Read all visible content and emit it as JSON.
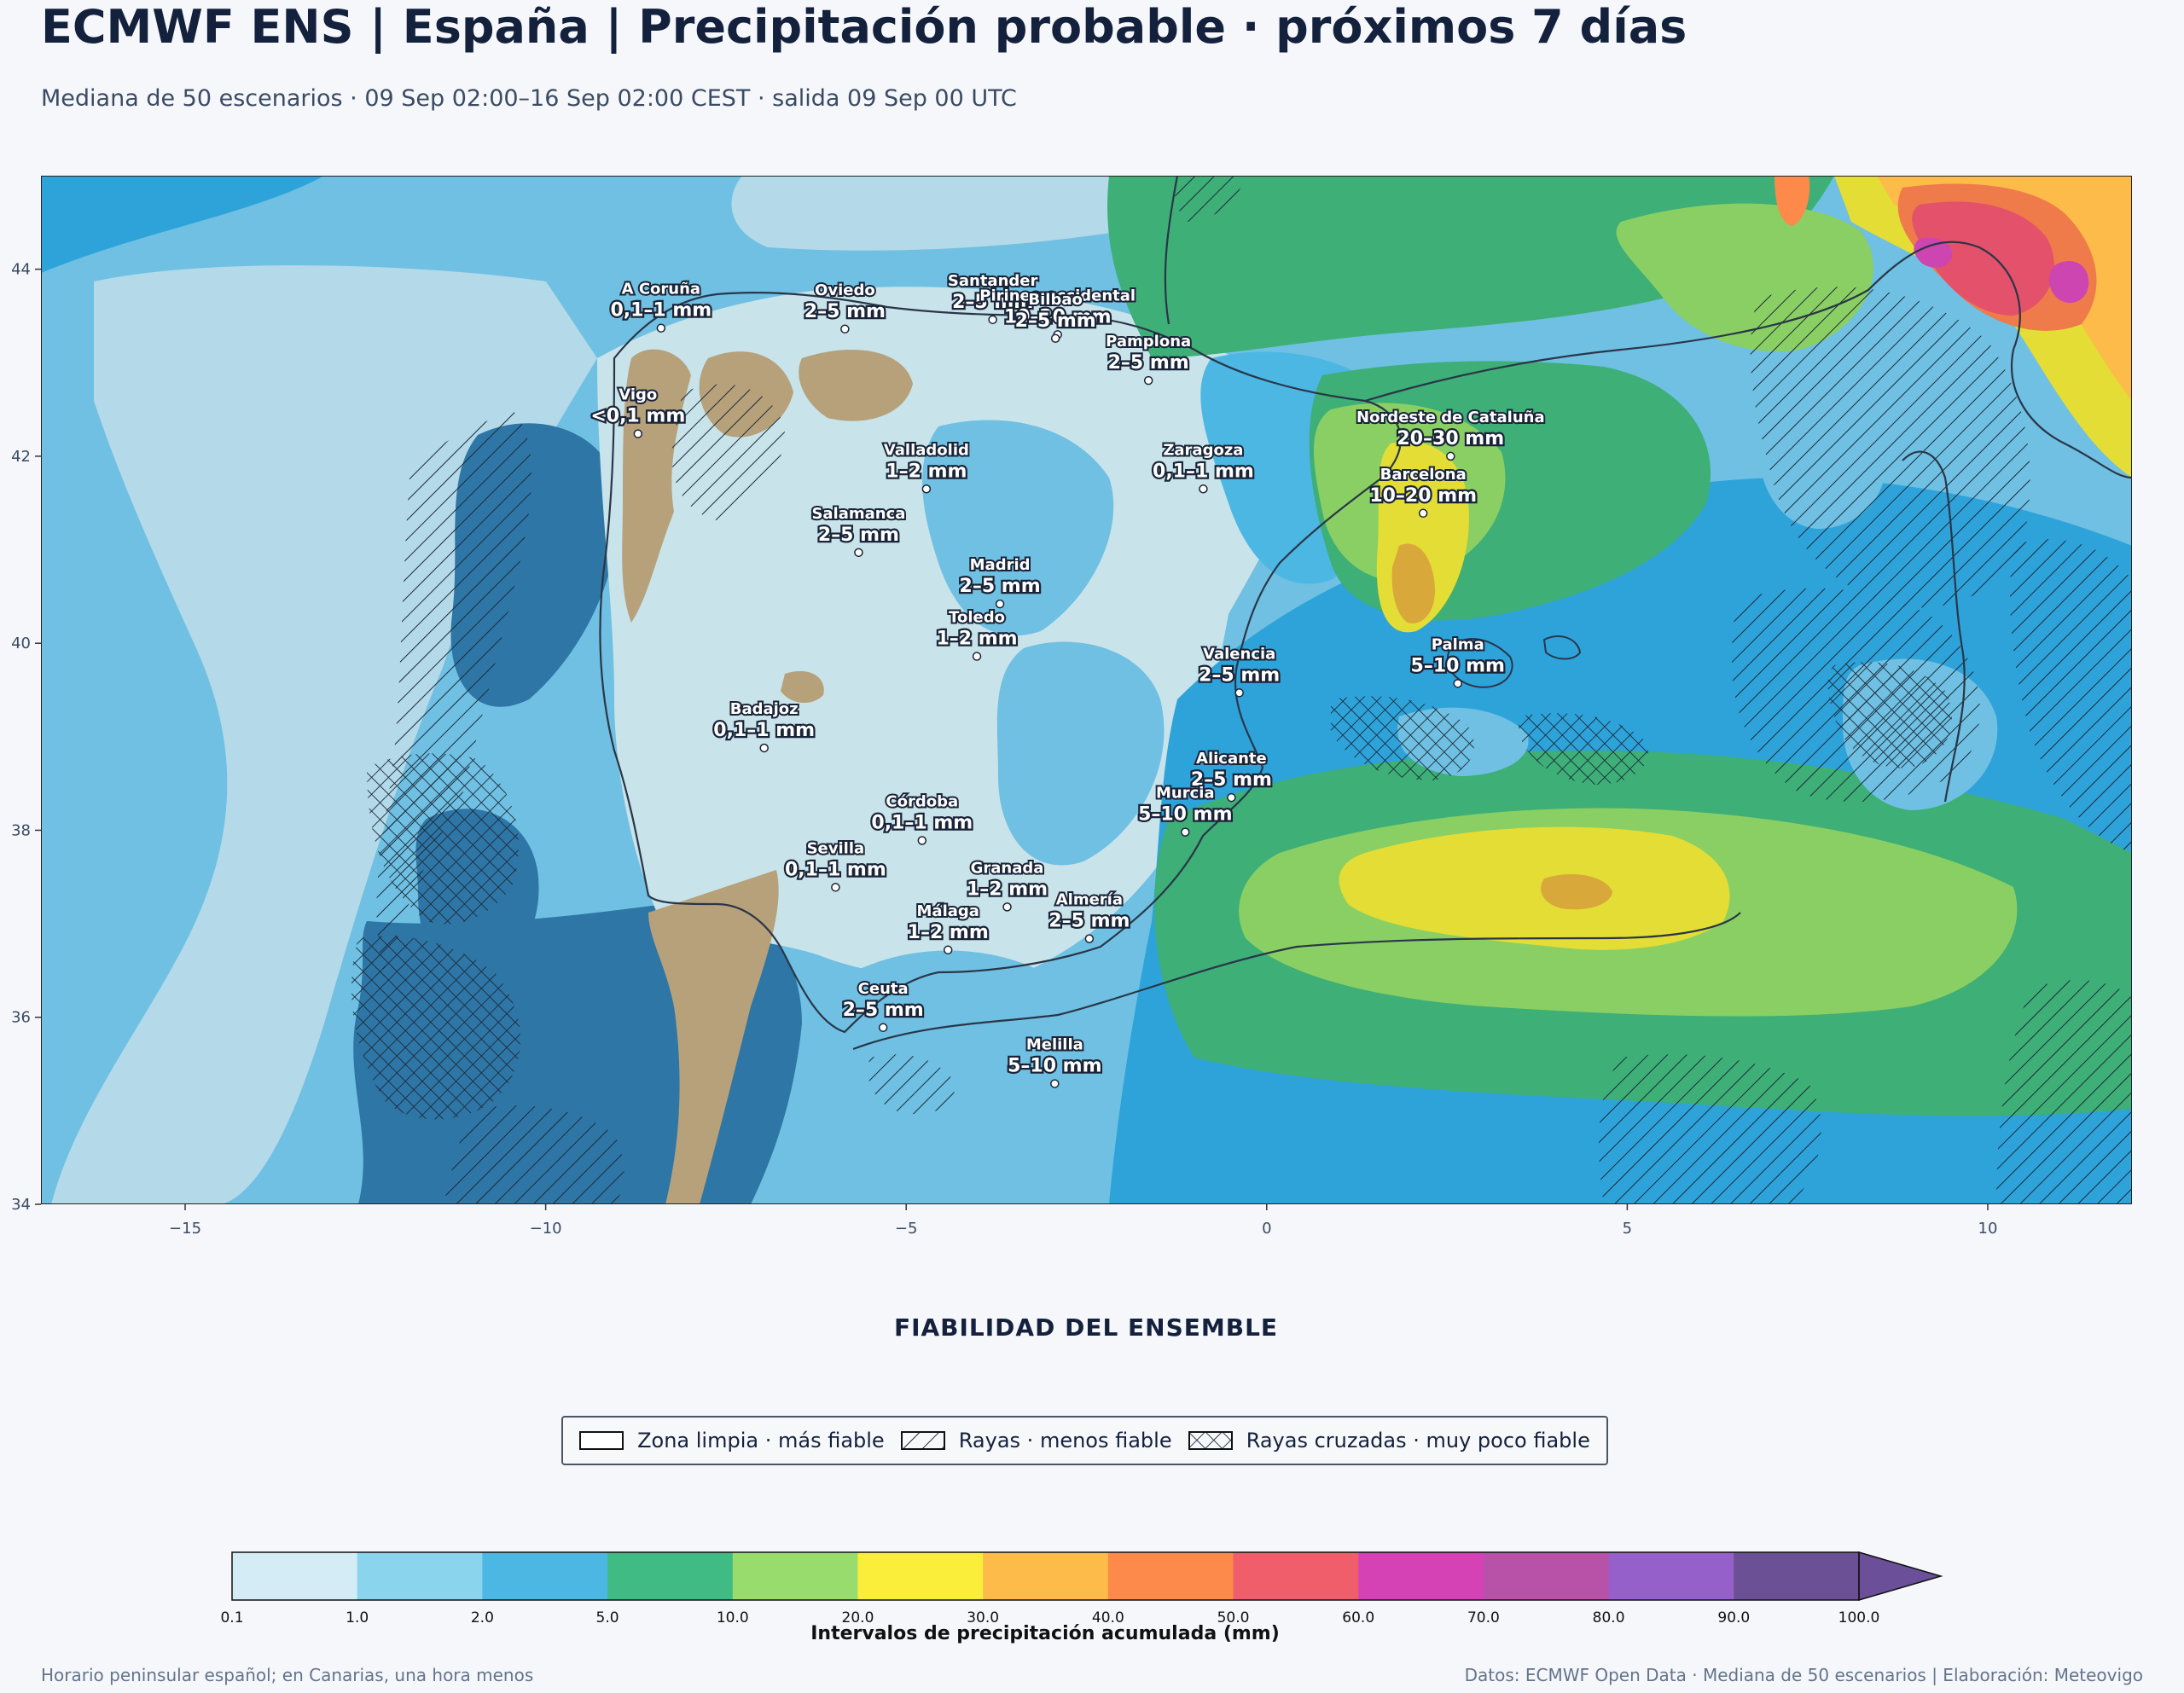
{
  "header": {
    "title": "ECMWF ENS | España | Precipitación probable · próximos 7 días",
    "subtitle": "Mediana de 50 escenarios · 09 Sep 02:00–16 Sep 02:00 CEST · salida 09 Sep 00 UTC"
  },
  "map": {
    "lon_ticks": [
      "−15",
      "−10",
      "−5",
      "0",
      "5",
      "10"
    ],
    "lat_ticks": [
      "44",
      "42",
      "40",
      "38",
      "36",
      "34"
    ],
    "lon_range": [
      -17,
      12
    ],
    "lat_range": [
      34,
      45
    ],
    "cities": [
      {
        "name": "A Coruña",
        "value": "0,1–1 mm",
        "lon": -8.4,
        "lat": 43.37
      },
      {
        "name": "Oviedo",
        "value": "2–5 mm",
        "lon": -5.85,
        "lat": 43.36
      },
      {
        "name": "Santander",
        "value": "2–5 mm",
        "lon": -3.8,
        "lat": 43.46
      },
      {
        "name": "Pirineo occidental",
        "value": "10–20 mm",
        "lon": -2.9,
        "lat": 43.3
      },
      {
        "name": "Pamplona",
        "value": "2–5 mm",
        "lon": -1.64,
        "lat": 42.81
      },
      {
        "name": "Bilbao",
        "value": "2–5 mm",
        "lon": -2.93,
        "lat": 43.26
      },
      {
        "name": "Nordeste de Cataluña",
        "value": "20–30 mm",
        "lon": 2.55,
        "lat": 42.0
      },
      {
        "name": "Vigo",
        "value": "<0,1 mm",
        "lon": -8.72,
        "lat": 42.24
      },
      {
        "name": "Valladolid",
        "value": "1–2 mm",
        "lon": -4.72,
        "lat": 41.65
      },
      {
        "name": "Zaragoza",
        "value": "0,1–1 mm",
        "lon": -0.88,
        "lat": 41.65
      },
      {
        "name": "Barcelona",
        "value": "10–20 mm",
        "lon": 2.17,
        "lat": 41.39
      },
      {
        "name": "Salamanca",
        "value": "2–5 mm",
        "lon": -5.66,
        "lat": 40.97
      },
      {
        "name": "Madrid",
        "value": "2–5 mm",
        "lon": -3.7,
        "lat": 40.42
      },
      {
        "name": "Valencia",
        "value": "2–5 mm",
        "lon": -0.38,
        "lat": 39.47
      },
      {
        "name": "Toledo",
        "value": "1–2 mm",
        "lon": -4.02,
        "lat": 39.86
      },
      {
        "name": "Badajoz",
        "value": "0,1–1 mm",
        "lon": -6.97,
        "lat": 38.88
      },
      {
        "name": "Palma",
        "value": "5–10 mm",
        "lon": 2.65,
        "lat": 39.57
      },
      {
        "name": "Córdoba",
        "value": "0,1–1 mm",
        "lon": -4.78,
        "lat": 37.89
      },
      {
        "name": "Alicante",
        "value": "2–5 mm",
        "lon": -0.49,
        "lat": 38.35
      },
      {
        "name": "Granada",
        "value": "1–2 mm",
        "lon": -3.6,
        "lat": 37.18
      },
      {
        "name": "Murcia",
        "value": "5–10 mm",
        "lon": -1.13,
        "lat": 37.98
      },
      {
        "name": "Sevilla",
        "value": "0,1–1 mm",
        "lon": -5.98,
        "lat": 37.39
      },
      {
        "name": "Almería",
        "value": "2–5 mm",
        "lon": -2.46,
        "lat": 36.84
      },
      {
        "name": "Málaga",
        "value": "1–2 mm",
        "lon": -4.42,
        "lat": 36.72
      },
      {
        "name": "Ceuta",
        "value": "2–5 mm",
        "lon": -5.32,
        "lat": 35.89
      },
      {
        "name": "Melilla",
        "value": "5–10 mm",
        "lon": -2.94,
        "lat": 35.29
      }
    ]
  },
  "reliability": {
    "title": "FIABILIDAD DEL ENSEMBLE",
    "items": [
      {
        "label": "Zona limpia · más fiable",
        "pattern": "none"
      },
      {
        "label": "Rayas · menos fiable",
        "pattern": "hatch"
      },
      {
        "label": "Rayas cruzadas · muy poco fiable",
        "pattern": "crosshatch"
      }
    ]
  },
  "colorbar": {
    "label": "Intervalos de precipitación acumulada (mm)",
    "ticks": [
      "0.1",
      "1.0",
      "2.0",
      "5.0",
      "10.0",
      "20.0",
      "30.0",
      "40.0",
      "50.0",
      "60.0",
      "70.0",
      "80.0",
      "90.0",
      "100.0"
    ],
    "colors": [
      "#d4ecf5",
      "#8ad4ee",
      "#4cb7e3",
      "#40bb84",
      "#98dc6e",
      "#fbee3a",
      "#fdbb4a",
      "#fd8a4a",
      "#ef5e6a",
      "#d542b5",
      "#b851a8",
      "#9560c9",
      "#6b5095"
    ],
    "extend_color": "#6b4f99"
  },
  "footer": {
    "left": "Horario peninsular español; en Canarias, una hora menos",
    "right": "Datos: ECMWF Open Data · Mediana de 50 escenarios | Elaboración: Meteovigo"
  }
}
